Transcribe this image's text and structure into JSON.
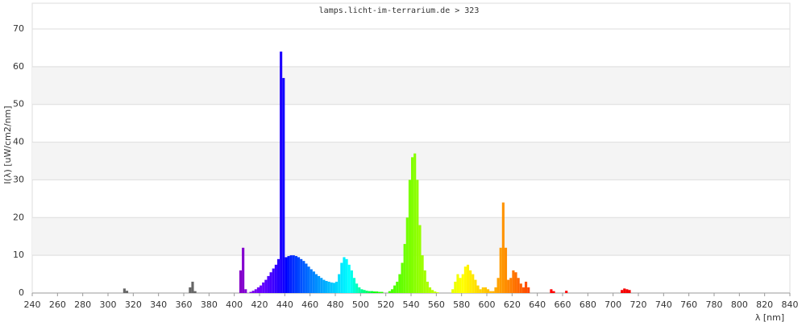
{
  "chart_data": {
    "type": "bar",
    "title": "lamps.licht-im-terrarium.de > 323",
    "x_label": "λ [nm]",
    "y_label": "I(λ)  [uW/cm2/nm]",
    "x": [
      300,
      302,
      304,
      306,
      308,
      310,
      312,
      314,
      316,
      318,
      320,
      322,
      324,
      326,
      328,
      330,
      332,
      334,
      336,
      338,
      340,
      342,
      344,
      346,
      348,
      350,
      352,
      354,
      356,
      358,
      360,
      362,
      364,
      366,
      368,
      370,
      372,
      374,
      376,
      378,
      380,
      382,
      384,
      386,
      388,
      390,
      392,
      394,
      396,
      398,
      400,
      402,
      404,
      406,
      408,
      410,
      412,
      414,
      416,
      418,
      420,
      422,
      424,
      426,
      428,
      430,
      432,
      434,
      436,
      438,
      440,
      442,
      444,
      446,
      448,
      450,
      452,
      454,
      456,
      458,
      460,
      462,
      464,
      466,
      468,
      470,
      472,
      474,
      476,
      478,
      480,
      482,
      484,
      486,
      488,
      490,
      492,
      494,
      496,
      498,
      500,
      502,
      504,
      506,
      508,
      510,
      512,
      514,
      516,
      518,
      520,
      522,
      524,
      526,
      528,
      530,
      532,
      534,
      536,
      538,
      540,
      542,
      544,
      546,
      548,
      550,
      552,
      554,
      556,
      558,
      560,
      562,
      564,
      566,
      568,
      570,
      572,
      574,
      576,
      578,
      580,
      582,
      584,
      586,
      588,
      590,
      592,
      594,
      596,
      598,
      600,
      602,
      604,
      606,
      608,
      610,
      612,
      614,
      616,
      618,
      620,
      622,
      624,
      626,
      628,
      630,
      632,
      634,
      636,
      638,
      640,
      642,
      644,
      646,
      648,
      650,
      652,
      654,
      656,
      658,
      660,
      662,
      664,
      666,
      668,
      670,
      672,
      674,
      676,
      678,
      680,
      682,
      684,
      686,
      688,
      690,
      692,
      694,
      696,
      698,
      700,
      702,
      704,
      706,
      708,
      710,
      712,
      714,
      716,
      718,
      720
    ],
    "values": [
      0,
      0,
      0,
      0,
      0,
      0,
      1.2,
      0.6,
      0,
      0,
      0,
      0,
      0,
      0,
      0,
      0,
      0,
      0,
      0,
      0,
      0,
      0,
      0,
      0,
      0,
      0,
      0,
      0,
      0,
      0,
      0,
      0,
      1.5,
      3,
      0.5,
      0,
      0,
      0,
      0,
      0,
      0,
      0,
      0,
      0,
      0,
      0,
      0,
      0,
      0,
      0,
      0,
      0,
      6,
      12,
      1,
      0,
      0.3,
      0.6,
      1,
      1.5,
      2,
      2.8,
      3.5,
      4.5,
      5.5,
      6.5,
      7.5,
      9,
      64,
      57,
      9.5,
      9.8,
      10,
      10,
      9.8,
      9.5,
      9,
      8.5,
      7.8,
      7,
      6.3,
      5.7,
      5,
      4.5,
      4,
      3.5,
      3.2,
      3,
      2.8,
      2.7,
      3,
      5,
      8,
      9.5,
      9,
      7.5,
      6,
      4,
      2.5,
      1.5,
      1,
      0.8,
      0.6,
      0.5,
      0.5,
      0.4,
      0.4,
      0.3,
      0.3,
      0,
      0,
      0.5,
      1,
      2,
      3,
      5,
      8,
      13,
      20,
      30,
      36,
      37,
      30,
      18,
      10,
      6,
      3,
      1.5,
      0.8,
      0.4,
      0.2,
      0,
      0,
      0,
      0,
      0,
      1,
      3,
      5,
      4,
      5,
      7,
      7.5,
      6,
      5,
      3.5,
      2,
      1,
      1.5,
      1.5,
      1,
      0.5,
      0.5,
      1.5,
      4,
      12,
      24,
      12,
      3.5,
      4,
      6,
      5.5,
      4,
      2.5,
      1.5,
      3,
      1.5,
      0,
      0,
      0,
      0,
      0,
      0,
      0,
      0,
      1,
      0.5,
      0,
      0,
      0,
      0,
      0.6,
      0,
      0,
      0,
      0,
      0,
      0,
      0,
      0,
      0,
      0,
      0,
      0,
      0,
      0,
      0,
      0,
      0,
      0,
      0,
      0,
      0,
      0.8,
      1.2,
      1,
      0.8,
      0,
      0,
      0,
      0
    ],
    "xlim": [
      240,
      840
    ],
    "xticks": [
      240,
      260,
      280,
      300,
      320,
      340,
      360,
      380,
      400,
      420,
      440,
      460,
      480,
      500,
      520,
      540,
      560,
      580,
      600,
      620,
      640,
      660,
      680,
      700,
      720,
      740,
      760,
      780,
      800,
      820,
      840
    ],
    "ylim": [
      0,
      70
    ],
    "yticks": [
      0,
      10,
      20,
      30,
      40,
      50,
      60,
      70
    ],
    "grid": true
  }
}
